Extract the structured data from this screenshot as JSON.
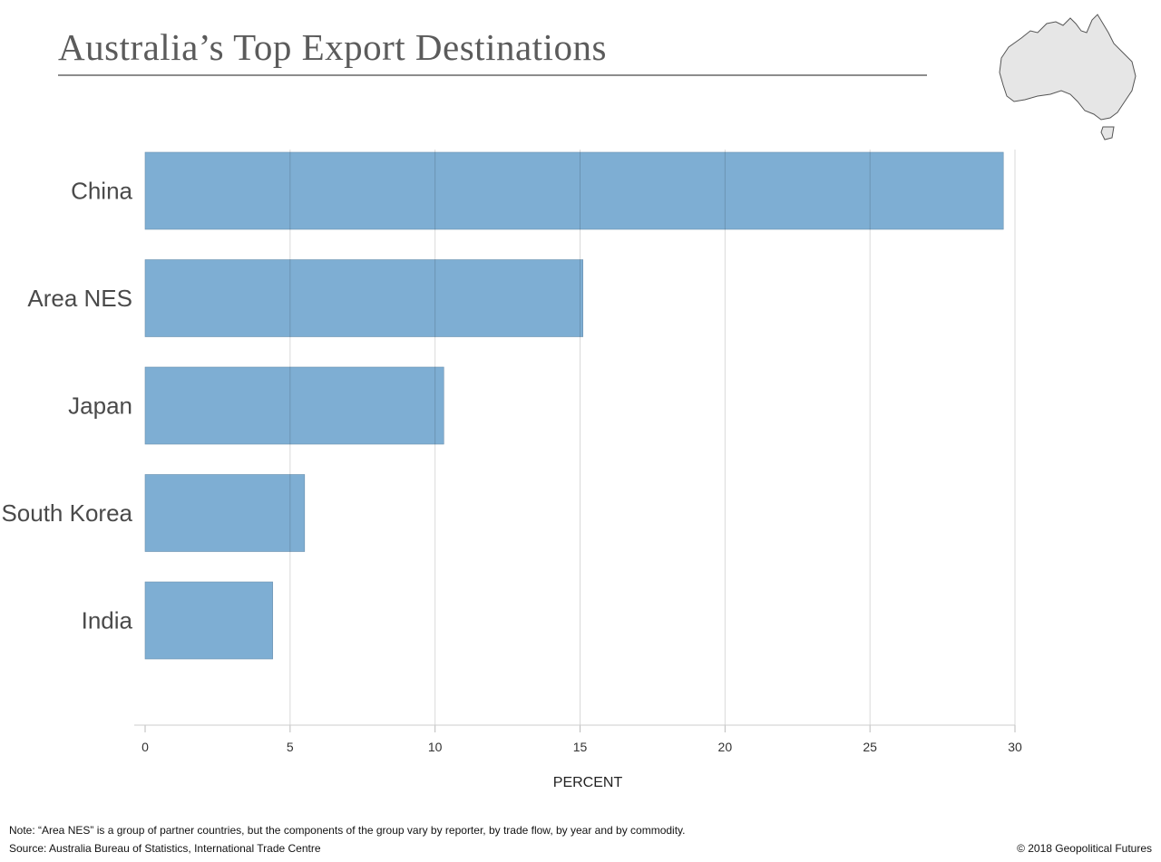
{
  "title": "Australia’s Top Export Destinations",
  "map": {
    "icon": "australia-map-icon",
    "fill": "#e6e6e6",
    "stroke": "#555555"
  },
  "chart_data": {
    "type": "bar",
    "orientation": "horizontal",
    "categories": [
      "China",
      "Area NES",
      "Japan",
      "South Korea",
      "India"
    ],
    "values": [
      29.6,
      15.1,
      10.3,
      5.5,
      4.4
    ],
    "xlabel": "PERCENT",
    "xlim": [
      0,
      30
    ],
    "xticks": [
      "0",
      "5",
      "10",
      "15",
      "20",
      "25",
      "30"
    ],
    "grid": true,
    "bar_color": "#7eaed3"
  },
  "footer": {
    "note": "Note: “Area NES” is a group of partner countries, but the components of the group vary by reporter, by trade flow, by year and by commodity.",
    "source": "Source: Australia Bureau of Statistics, International Trade Centre",
    "copyright": "© 2018 Geopolitical Futures"
  }
}
